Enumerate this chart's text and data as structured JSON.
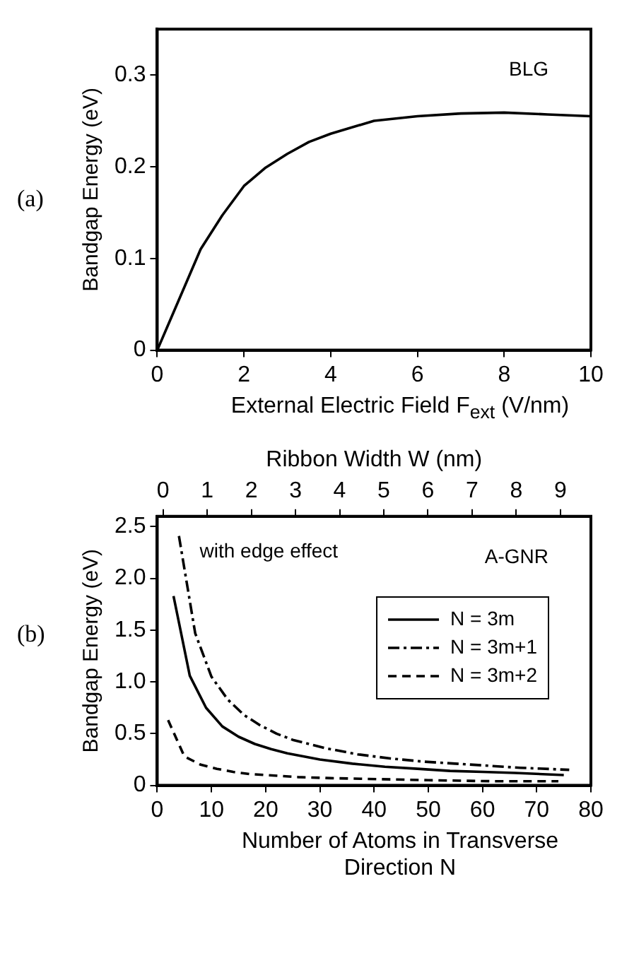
{
  "chart_data": [
    {
      "type": "line",
      "xlabel": "External Electric Field F$_{ext}$ (V/nm)",
      "ylabel": "Bandgap Energy (eV)",
      "annotations": [
        "(a)",
        "BLG"
      ],
      "xlim": [
        0,
        10
      ],
      "xticks": [
        0,
        2,
        4,
        6,
        8,
        10
      ],
      "ylim": [
        0,
        0.35
      ],
      "yticks": [
        0,
        0.1,
        0.2,
        0.3
      ],
      "grid": false,
      "legend": false,
      "marker": "none",
      "series": [
        {
          "color": "#000000",
          "line_style": "solid",
          "x": [
            0,
            0.5,
            1,
            1.5,
            2,
            2.5,
            3,
            3.5,
            4,
            5,
            6,
            7,
            8,
            9,
            10
          ],
          "values": [
            0,
            0.055,
            0.11,
            0.147,
            0.179,
            0.199,
            0.214,
            0.227,
            0.236,
            0.25,
            0.255,
            0.258,
            0.259,
            0.257,
            0.255
          ]
        }
      ]
    },
    {
      "type": "line",
      "xlabel": "Number of Atoms in Transverse Direction N",
      "ylabel": "Bandgap Energy (eV)",
      "x2label": "Ribbon Width W (nm)",
      "annotations": [
        "(b)",
        "with edge effect",
        "A-GNR"
      ],
      "xlim": [
        0,
        80
      ],
      "xticks": [
        0,
        10,
        20,
        30,
        40,
        50,
        60,
        70,
        80
      ],
      "x2lim": [
        -0.13,
        9.69
      ],
      "x2ticks": [
        0,
        1,
        2,
        3,
        4,
        5,
        6,
        7,
        8,
        9
      ],
      "ylim": [
        0,
        2.6
      ],
      "yticks": [
        0,
        0.5,
        {
          "value": 1,
          "label": "1.0"
        },
        1.5,
        {
          "value": 2,
          "label": "2.0"
        },
        2.5
      ],
      "grid": false,
      "legend": "right",
      "marker": "none",
      "series": [
        {
          "name": "N = 3m",
          "color": "#000000",
          "line_style": "solid",
          "x": [
            3,
            6,
            9,
            12,
            15,
            18,
            21,
            24,
            30,
            36,
            42,
            48,
            54,
            60,
            66,
            75
          ],
          "values": [
            1.83,
            1.06,
            0.75,
            0.57,
            0.47,
            0.4,
            0.35,
            0.31,
            0.25,
            0.21,
            0.18,
            0.16,
            0.14,
            0.13,
            0.12,
            0.1
          ]
        },
        {
          "name": "N = 3m+1",
          "color": "#000000",
          "line_style": "dashdot",
          "x": [
            4,
            7,
            10,
            13,
            16,
            19,
            22,
            25,
            31,
            37,
            43,
            49,
            55,
            61,
            67,
            76
          ],
          "values": [
            2.41,
            1.47,
            1.05,
            0.83,
            0.68,
            0.58,
            0.5,
            0.44,
            0.36,
            0.3,
            0.26,
            0.23,
            0.21,
            0.19,
            0.17,
            0.15
          ]
        },
        {
          "name": "N = 3m+2",
          "color": "#000000",
          "line_style": "dashed",
          "x": [
            2,
            5,
            8,
            11,
            14,
            17,
            20,
            26,
            32,
            41,
            50,
            62,
            74
          ],
          "values": [
            0.63,
            0.28,
            0.2,
            0.16,
            0.13,
            0.11,
            0.1,
            0.08,
            0.07,
            0.06,
            0.05,
            0.04,
            0.04
          ]
        }
      ]
    }
  ]
}
